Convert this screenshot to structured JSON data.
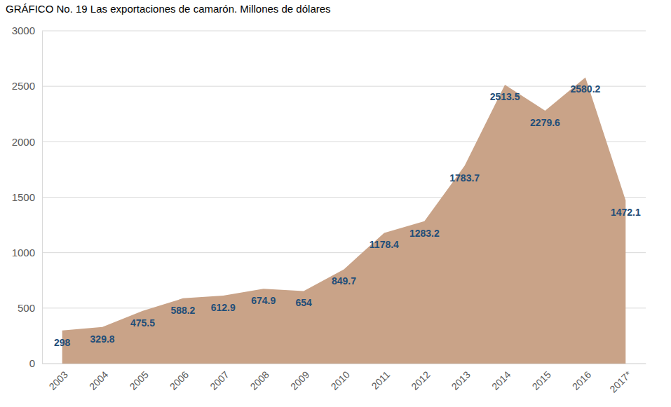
{
  "chart_data": {
    "type": "area",
    "title": "GRÁFICO No. 19 Las exportaciones de camarón. Millones de dólares",
    "categories": [
      "2003",
      "2004",
      "2005",
      "2006",
      "2007",
      "2008",
      "2009",
      "2010",
      "2011",
      "2012",
      "2013",
      "2014",
      "2015",
      "2016",
      "2017*"
    ],
    "values": [
      298,
      329.8,
      475.5,
      588.2,
      612.9,
      674.9,
      654,
      849.7,
      1178.4,
      1283.2,
      1783.7,
      2513.5,
      2279.6,
      2580.2,
      1472.1
    ],
    "color": "#c9a388",
    "ylim": [
      0,
      3000
    ],
    "yticks": [
      0,
      500,
      1000,
      1500,
      2000,
      2500,
      3000
    ],
    "grid": true,
    "data_labels": true
  }
}
